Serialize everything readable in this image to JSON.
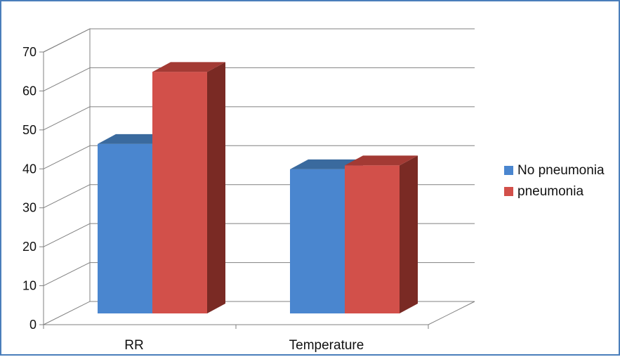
{
  "chart_data": {
    "type": "bar",
    "style": "3d-clustered-column",
    "title": "",
    "xlabel": "",
    "ylabel": "",
    "categories": [
      "RR",
      "Temperature"
    ],
    "series": [
      {
        "name": "No pneumonia",
        "values": [
          43.5,
          37
        ],
        "color": "#4a86cf",
        "side_color": "#2a4a74",
        "top_color": "#3a6a9e"
      },
      {
        "name": "pneumonia",
        "values": [
          62,
          38
        ],
        "color": "#d2504a",
        "side_color": "#7a2a24",
        "top_color": "#a33a34"
      }
    ],
    "ylim": [
      0,
      70
    ],
    "yticks": [
      "0",
      "10",
      "20",
      "30",
      "40",
      "50",
      "60",
      "70"
    ],
    "grid": true,
    "legend_position": "right"
  }
}
